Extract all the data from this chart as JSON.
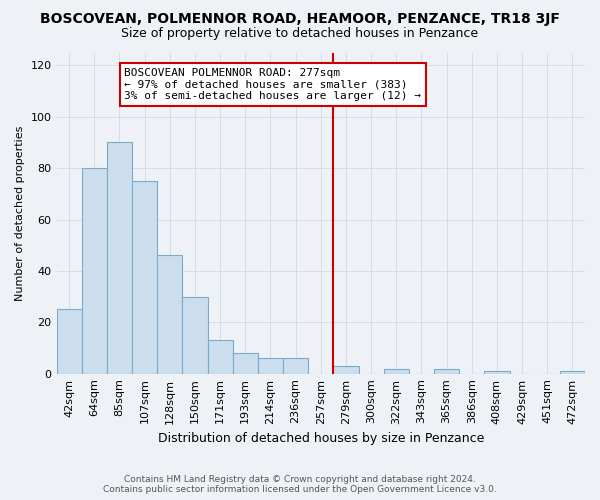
{
  "title": "BOSCOVEAN, POLMENNOR ROAD, HEAMOOR, PENZANCE, TR18 3JF",
  "subtitle": "Size of property relative to detached houses in Penzance",
  "xlabel": "Distribution of detached houses by size in Penzance",
  "ylabel": "Number of detached properties",
  "bar_labels": [
    "42sqm",
    "64sqm",
    "85sqm",
    "107sqm",
    "128sqm",
    "150sqm",
    "171sqm",
    "193sqm",
    "214sqm",
    "236sqm",
    "257sqm",
    "279sqm",
    "300sqm",
    "322sqm",
    "343sqm",
    "365sqm",
    "386sqm",
    "408sqm",
    "429sqm",
    "451sqm",
    "472sqm"
  ],
  "bar_heights": [
    25,
    80,
    90,
    75,
    46,
    30,
    13,
    8,
    6,
    6,
    0,
    3,
    0,
    2,
    0,
    2,
    0,
    1,
    0,
    0,
    1
  ],
  "bar_color": "#ccdded",
  "bar_edge_color": "#7aabcc",
  "vline_color": "#cc0000",
  "annotation_title": "BOSCOVEAN POLMENNOR ROAD: 277sqm",
  "annotation_line1": "← 97% of detached houses are smaller (383)",
  "annotation_line2": "3% of semi-detached houses are larger (12) →",
  "annotation_box_color": "#ffffff",
  "annotation_box_edge": "#cc0000",
  "ylim": [
    0,
    125
  ],
  "yticks": [
    0,
    20,
    40,
    60,
    80,
    100,
    120
  ],
  "footer1": "Contains HM Land Registry data © Crown copyright and database right 2024.",
  "footer2": "Contains public sector information licensed under the Open Government Licence v3.0.",
  "bg_color": "#eef2f7",
  "plot_bg_color": "#eef2f7",
  "grid_color": "#d0d8e4",
  "title_fontsize": 10,
  "subtitle_fontsize": 9,
  "xlabel_fontsize": 9,
  "ylabel_fontsize": 8,
  "tick_fontsize": 8,
  "ann_fontsize": 8,
  "footer_fontsize": 6.5
}
